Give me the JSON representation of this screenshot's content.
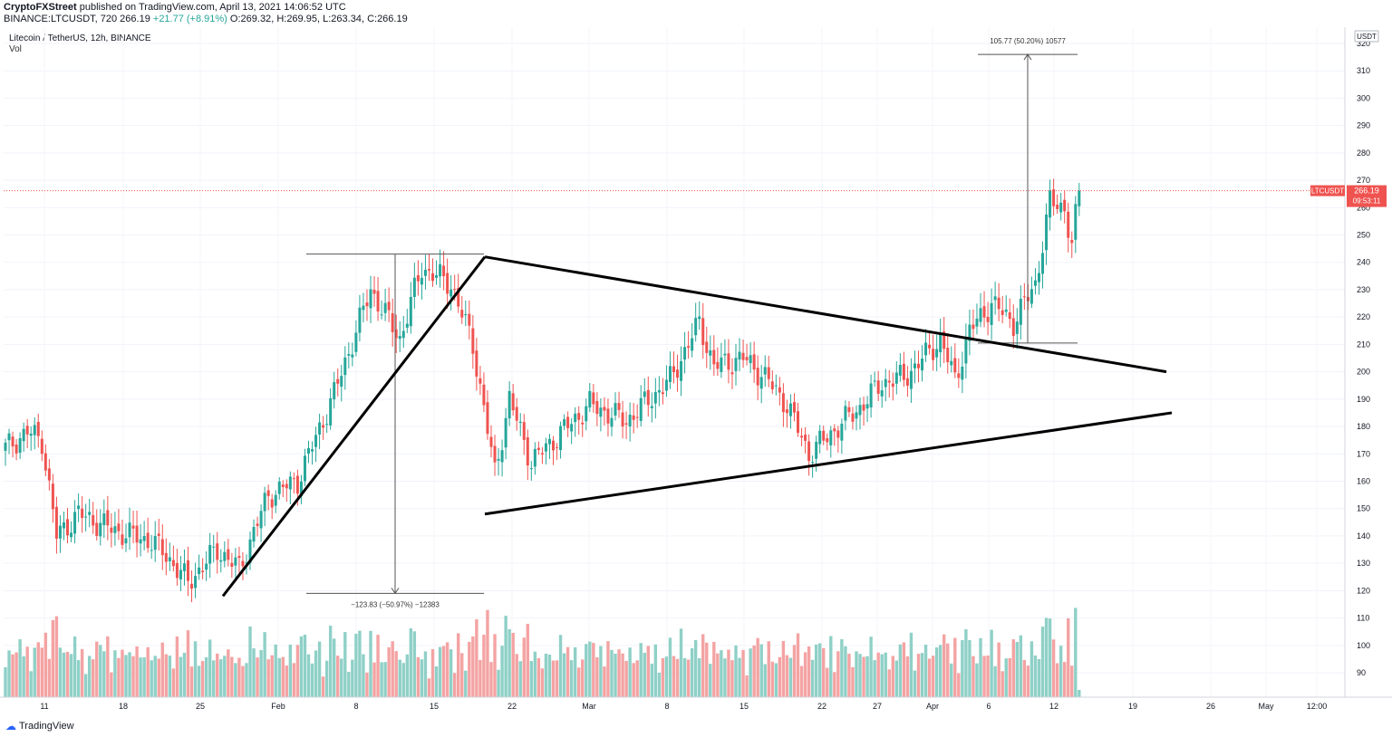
{
  "header": {
    "author": "CryptoFXStreet",
    "published_text": "published on TradingView.com, April 13, 2021 14:06:52 UTC",
    "symbol_full": "BINANCE:LTCUSDT, 720",
    "last": "266.19",
    "change": "+21.77 (+8.91%)",
    "o_label": "O:",
    "o_value": "269.32",
    "h_label": "H:",
    "h_value": "269.95",
    "l_label": "L:",
    "l_value": "263.34",
    "c_label": "C:",
    "c_value": "266.19"
  },
  "legend": {
    "symbol_title": "Litecoin / TetherUS, 12h, BINANCE",
    "vol_label": "Vol"
  },
  "price_axis": {
    "currency_label": "USDT",
    "last_price_tag": "LTCUSDT",
    "last_price": "266.19",
    "countdown": "09:53:11"
  },
  "measure_labels": {
    "drop": "−123.83 (−50.97%) −12383",
    "target": "105.77 (50.20%) 10577"
  },
  "footer": {
    "brand": "TradingView"
  },
  "colors": {
    "up": "#26a69a",
    "down": "#ef5350",
    "vol_up": "#8fd0c7",
    "vol_down": "#f4a3a3",
    "price_tag": "#ef5350"
  },
  "chart_data": {
    "type": "candlestick",
    "title": "Litecoin / TetherUS, 12h, BINANCE",
    "ylim": [
      85,
      325
    ],
    "y_ticks": [
      90,
      100,
      110,
      120,
      130,
      140,
      150,
      160,
      170,
      180,
      190,
      200,
      210,
      220,
      230,
      240,
      250,
      260,
      270,
      280,
      290,
      300,
      310,
      320
    ],
    "x_ticks": [
      "11",
      "18",
      "25",
      "Feb",
      "8",
      "15",
      "22",
      "Mar",
      "8",
      "15",
      "22",
      "27",
      "Apr",
      "6",
      "12",
      "19",
      "26",
      "May",
      "12:00"
    ],
    "last_price": 266.19,
    "anchor_closes": [
      [
        0,
        172
      ],
      [
        6,
        178
      ],
      [
        10,
        175
      ],
      [
        14,
        140
      ],
      [
        20,
        148
      ],
      [
        30,
        142
      ],
      [
        40,
        138
      ],
      [
        44,
        133
      ],
      [
        50,
        123
      ],
      [
        58,
        135
      ],
      [
        64,
        128
      ],
      [
        72,
        155
      ],
      [
        80,
        160
      ],
      [
        90,
        192
      ],
      [
        100,
        230
      ],
      [
        108,
        212
      ],
      [
        114,
        238
      ],
      [
        122,
        232
      ],
      [
        128,
        210
      ],
      [
        134,
        163
      ],
      [
        138,
        190
      ],
      [
        144,
        167
      ],
      [
        150,
        175
      ],
      [
        160,
        188
      ],
      [
        170,
        182
      ],
      [
        182,
        197
      ],
      [
        190,
        218
      ],
      [
        194,
        202
      ],
      [
        202,
        205
      ],
      [
        208,
        198
      ],
      [
        214,
        188
      ],
      [
        220,
        170
      ],
      [
        228,
        180
      ],
      [
        234,
        187
      ],
      [
        240,
        196
      ],
      [
        246,
        198
      ],
      [
        250,
        203
      ],
      [
        256,
        212
      ],
      [
        260,
        197
      ],
      [
        264,
        215
      ],
      [
        270,
        225
      ],
      [
        276,
        218
      ],
      [
        282,
        232
      ],
      [
        286,
        262
      ],
      [
        290,
        260
      ],
      [
        292,
        246
      ],
      [
        294,
        266.19
      ]
    ],
    "volume_note": "volume histogram drawn beneath price; relative heights only",
    "drawings": {
      "flagpole": {
        "from": [
          "2021-01-28",
          118
        ],
        "to": [
          "2021-02-19",
          242
        ]
      },
      "upper_trendline": {
        "from": [
          "2021-02-19",
          242
        ],
        "to": [
          "2021-04-20",
          200
        ]
      },
      "lower_trendline": {
        "from": [
          "2021-02-19",
          148
        ],
        "to": [
          "2021-04-20",
          185
        ]
      },
      "measure_drop": {
        "top": 243,
        "bottom": 119,
        "label": "−123.83 (−50.97%) −12383"
      },
      "measure_target": {
        "bottom": 210.5,
        "top": 316,
        "label": "105.77 (50.20%) 10577"
      }
    }
  }
}
